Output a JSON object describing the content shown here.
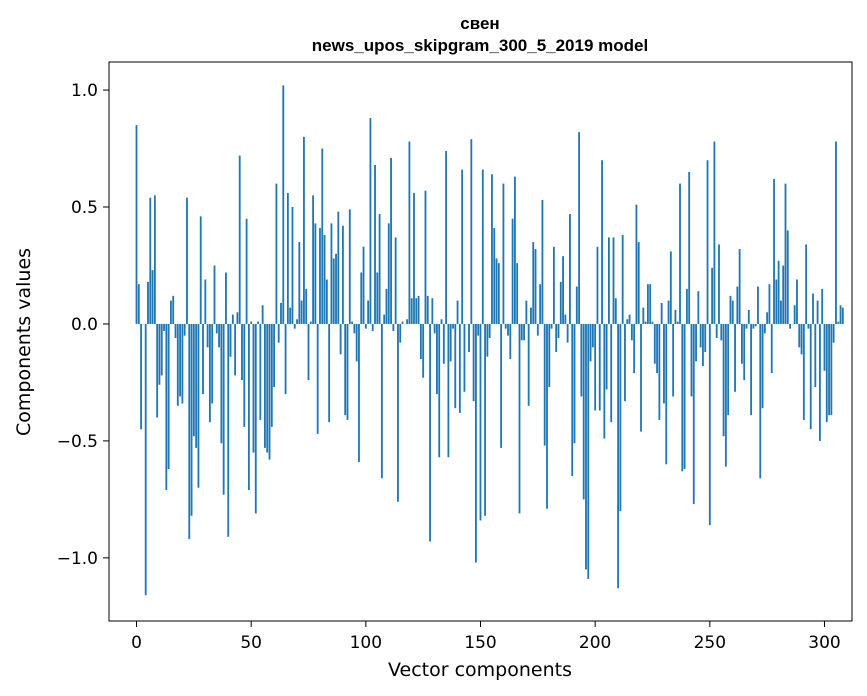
{
  "chart_data": {
    "type": "bar",
    "title_line1": "свен",
    "title_line2": "news_upos_skipgram_300_5_2019 model",
    "xlabel": "Vector components",
    "ylabel": "Components values",
    "xlim": [
      -12,
      312
    ],
    "ylim": [
      -1.27,
      1.12
    ],
    "x_ticks": [
      0,
      50,
      100,
      150,
      200,
      250,
      300
    ],
    "x_tick_labels": [
      "0",
      "50",
      "100",
      "150",
      "200",
      "250",
      "300"
    ],
    "y_ticks": [
      -1.0,
      -0.5,
      0.0,
      0.5,
      1.0
    ],
    "y_tick_labels": [
      "−1.0",
      "−0.5",
      "0.0",
      "0.5",
      "1.0"
    ],
    "bar_color": "#1f77b4",
    "grid": false,
    "values": [
      0.85,
      0.17,
      -0.45,
      0.0,
      -1.16,
      0.18,
      0.54,
      0.23,
      0.55,
      -0.4,
      -0.26,
      -0.22,
      -0.03,
      -0.71,
      -0.62,
      0.1,
      0.12,
      -0.06,
      -0.35,
      -0.31,
      -0.34,
      -0.05,
      0.54,
      -0.92,
      -0.82,
      -0.48,
      -0.53,
      -0.7,
      0.46,
      -0.3,
      0.19,
      -0.1,
      -0.42,
      -0.34,
      0.25,
      -0.04,
      -0.1,
      -0.51,
      -0.73,
      0.22,
      -0.91,
      -0.14,
      0.04,
      -0.22,
      0.05,
      0.72,
      -0.24,
      -0.44,
      0.45,
      -0.71,
      0.01,
      -0.55,
      -0.81,
      0.01,
      -0.41,
      0.08,
      -0.53,
      -0.55,
      -0.58,
      -0.44,
      -0.27,
      0.6,
      -0.08,
      0.09,
      1.02,
      -0.3,
      0.56,
      0.07,
      0.5,
      -0.02,
      0.02,
      0.35,
      0.1,
      0.8,
      0.15,
      -0.24,
      0.01,
      0.55,
      0.43,
      -0.47,
      0.41,
      0.75,
      0.38,
      0.19,
      -0.42,
      0.43,
      0.28,
      0.3,
      0.48,
      -0.13,
      0.42,
      -0.39,
      -0.41,
      0.49,
      0.01,
      -0.04,
      -0.16,
      -0.59,
      0.22,
      0.33,
      -0.02,
      0.1,
      0.88,
      -0.03,
      0.68,
      0.22,
      0.47,
      -0.66,
      0.04,
      0.15,
      0.43,
      0.71,
      -0.03,
      0.37,
      -0.76,
      -0.08,
      0.01,
      0.0,
      0.02,
      0.78,
      0.11,
      0.56,
      0.11,
      0.12,
      -0.15,
      -0.23,
      0.57,
      0.12,
      -0.93,
      0.11,
      -0.04,
      -0.3,
      -0.57,
      0.02,
      -0.17,
      0.74,
      -0.57,
      -0.16,
      -0.02,
      -0.36,
      0.1,
      -0.38,
      0.66,
      -0.29,
      0.0,
      -0.12,
      0.79,
      -0.33,
      -1.02,
      -0.05,
      -0.84,
      0.66,
      -0.82,
      -0.14,
      -0.06,
      0.64,
      0.41,
      0.28,
      0.26,
      -0.53,
      0.6,
      -0.02,
      -0.05,
      -0.15,
      0.45,
      0.63,
      0.26,
      -0.81,
      -0.07,
      -0.07,
      0.1,
      -0.35,
      0.07,
      0.35,
      0.32,
      -0.05,
      0.17,
      0.53,
      -0.52,
      -0.79,
      -0.27,
      -0.02,
      0.33,
      -0.12,
      -0.06,
      0.18,
      0.29,
      0.04,
      -0.08,
      0.47,
      -0.65,
      -0.51,
      0.16,
      0.82,
      -0.31,
      -0.75,
      -1.05,
      -1.09,
      -0.16,
      -0.1,
      -0.37,
      0.33,
      -0.37,
      0.7,
      -0.49,
      -0.28,
      0.37,
      -0.42,
      0.37,
      0.11,
      -1.13,
      -0.8,
      0.38,
      -0.33,
      0.02,
      0.04,
      -0.07,
      -0.21,
      0.51,
      0.35,
      -0.46,
      0.07,
      0.01,
      0.17,
      0.17,
      0.01,
      -0.17,
      -0.21,
      -0.41,
      0.09,
      -0.34,
      -0.6,
      0.1,
      0.31,
      -0.31,
      0.06,
      0.01,
      0.6,
      -0.63,
      -0.62,
      0.15,
      0.65,
      -0.31,
      -0.77,
      -0.16,
      0.14,
      -0.1,
      -0.18,
      -0.12,
      0.7,
      -0.86,
      0.24,
      0.78,
      -0.06,
      0.34,
      -0.07,
      -0.48,
      -0.61,
      -0.39,
      0.12,
      0.1,
      -0.29,
      0.16,
      0.32,
      -0.17,
      -0.24,
      -0.02,
      0.06,
      -0.39,
      -0.02,
      -0.01,
      0.16,
      -0.66,
      -0.36,
      -0.04,
      0.05,
      0.17,
      -0.21,
      0.62,
      0.19,
      0.27,
      0.1,
      0.25,
      0.6,
      0.4,
      -0.02,
      0.0,
      0.08,
      0.19,
      -0.1,
      -0.13,
      -0.41,
      0.34,
      -0.02,
      -0.45,
      0.13,
      -0.27,
      0.1,
      -0.5,
      0.15,
      -0.2,
      -0.42,
      -0.39,
      -0.39,
      -0.08,
      0.78,
      0.01,
      0.08,
      0.07
    ]
  }
}
